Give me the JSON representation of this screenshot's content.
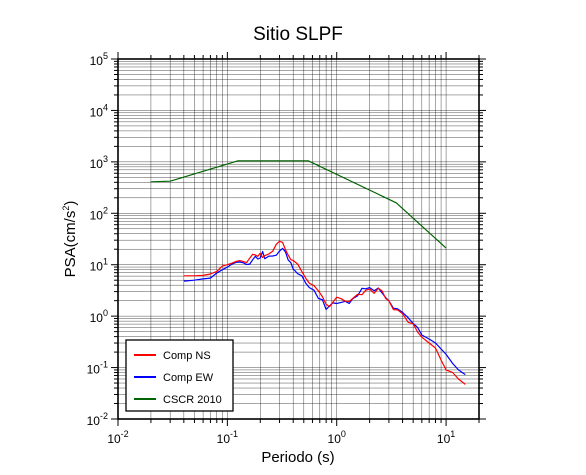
{
  "chart_data": {
    "type": "line",
    "title": "Sitio SLPF",
    "xlabel": "Periodo (s)",
    "ylabel_base": "PSA(cm/s",
    "ylabel_sup": "2",
    "ylabel_tail": ")",
    "xscale": "log",
    "yscale": "log",
    "xlim": [
      0.01,
      20
    ],
    "ylim": [
      0.01,
      100000
    ],
    "grid": true,
    "legend_position": "bottom-left",
    "x_ticks": [
      {
        "base": "10",
        "exp": "-2"
      },
      {
        "base": "10",
        "exp": "-1"
      },
      {
        "base": "10",
        "exp": "0"
      },
      {
        "base": "10",
        "exp": "1"
      }
    ],
    "y_ticks": [
      {
        "base": "10",
        "exp": "-2"
      },
      {
        "base": "10",
        "exp": "-1"
      },
      {
        "base": "10",
        "exp": "0"
      },
      {
        "base": "10",
        "exp": "1"
      },
      {
        "base": "10",
        "exp": "2"
      },
      {
        "base": "10",
        "exp": "3"
      },
      {
        "base": "10",
        "exp": "4"
      },
      {
        "base": "10",
        "exp": "5"
      }
    ],
    "series": [
      {
        "name": "Comp NS",
        "color": "#ff0000",
        "points": [
          [
            0.04,
            6.1
          ],
          [
            0.05,
            6.1
          ],
          [
            0.06,
            6.2
          ],
          [
            0.07,
            6.6
          ],
          [
            0.08,
            7.4
          ],
          [
            0.09,
            9.5
          ],
          [
            0.1,
            10.0
          ],
          [
            0.11,
            10.7
          ],
          [
            0.12,
            11.6
          ],
          [
            0.13,
            12.0
          ],
          [
            0.14,
            11.5
          ],
          [
            0.15,
            11.0
          ],
          [
            0.16,
            13.4
          ],
          [
            0.17,
            15.9
          ],
          [
            0.18,
            15.5
          ],
          [
            0.19,
            14.5
          ],
          [
            0.2,
            16.8
          ],
          [
            0.21,
            13.8
          ],
          [
            0.22,
            15.0
          ],
          [
            0.24,
            16.2
          ],
          [
            0.26,
            18.2
          ],
          [
            0.28,
            24.9
          ],
          [
            0.3,
            28.5
          ],
          [
            0.32,
            27.1
          ],
          [
            0.34,
            19.5
          ],
          [
            0.36,
            15.4
          ],
          [
            0.38,
            12.5
          ],
          [
            0.4,
            12.1
          ],
          [
            0.44,
            10.3
          ],
          [
            0.48,
            7.3
          ],
          [
            0.52,
            5.5
          ],
          [
            0.56,
            4.4
          ],
          [
            0.62,
            3.9
          ],
          [
            0.68,
            3.1
          ],
          [
            0.74,
            2.4
          ],
          [
            0.8,
            1.7
          ],
          [
            0.86,
            1.53
          ],
          [
            0.92,
            1.87
          ],
          [
            1.0,
            2.34
          ],
          [
            1.1,
            2.18
          ],
          [
            1.2,
            1.95
          ],
          [
            1.3,
            1.93
          ],
          [
            1.4,
            2.2
          ],
          [
            1.55,
            2.66
          ],
          [
            1.7,
            2.61
          ],
          [
            1.85,
            3.2
          ],
          [
            2.0,
            3.35
          ],
          [
            2.2,
            2.78
          ],
          [
            2.4,
            3.49
          ],
          [
            2.6,
            3.08
          ],
          [
            2.8,
            2.21
          ],
          [
            3.0,
            1.99
          ],
          [
            3.3,
            1.34
          ],
          [
            3.6,
            1.32
          ],
          [
            4.0,
            1.11
          ],
          [
            4.5,
            0.76
          ],
          [
            5.0,
            0.71
          ],
          [
            5.5,
            0.49
          ],
          [
            6.0,
            0.39
          ],
          [
            7.0,
            0.3
          ],
          [
            8.0,
            0.24
          ],
          [
            9.0,
            0.14
          ],
          [
            10.0,
            0.09
          ],
          [
            11.5,
            0.08
          ],
          [
            13.0,
            0.06
          ],
          [
            15.0,
            0.047
          ]
        ]
      },
      {
        "name": "Comp EW",
        "color": "#0000ff",
        "points": [
          [
            0.04,
            4.8
          ],
          [
            0.05,
            5.0
          ],
          [
            0.06,
            5.3
          ],
          [
            0.07,
            5.5
          ],
          [
            0.08,
            6.9
          ],
          [
            0.09,
            8.0
          ],
          [
            0.1,
            9.0
          ],
          [
            0.11,
            10.3
          ],
          [
            0.12,
            11.1
          ],
          [
            0.13,
            11.3
          ],
          [
            0.14,
            10.9
          ],
          [
            0.15,
            10.1
          ],
          [
            0.16,
            10.3
          ],
          [
            0.17,
            12.4
          ],
          [
            0.18,
            14.6
          ],
          [
            0.19,
            12.9
          ],
          [
            0.2,
            13.5
          ],
          [
            0.21,
            18.1
          ],
          [
            0.22,
            13.1
          ],
          [
            0.24,
            14.7
          ],
          [
            0.26,
            14.8
          ],
          [
            0.28,
            15.3
          ],
          [
            0.3,
            18.5
          ],
          [
            0.32,
            20.8
          ],
          [
            0.34,
            17.7
          ],
          [
            0.36,
            12.3
          ],
          [
            0.38,
            11.0
          ],
          [
            0.4,
            8.3
          ],
          [
            0.44,
            6.7
          ],
          [
            0.48,
            6.1
          ],
          [
            0.52,
            4.4
          ],
          [
            0.56,
            3.6
          ],
          [
            0.62,
            3.2
          ],
          [
            0.68,
            2.2
          ],
          [
            0.74,
            2.09
          ],
          [
            0.8,
            1.35
          ],
          [
            0.86,
            1.59
          ],
          [
            0.92,
            1.81
          ],
          [
            1.0,
            1.76
          ],
          [
            1.1,
            1.85
          ],
          [
            1.2,
            1.94
          ],
          [
            1.3,
            1.76
          ],
          [
            1.4,
            2.18
          ],
          [
            1.55,
            2.47
          ],
          [
            1.7,
            3.47
          ],
          [
            1.85,
            3.4
          ],
          [
            2.0,
            3.59
          ],
          [
            2.2,
            3.11
          ],
          [
            2.4,
            3.53
          ],
          [
            2.6,
            2.82
          ],
          [
            2.8,
            2.3
          ],
          [
            3.0,
            1.99
          ],
          [
            3.3,
            1.43
          ],
          [
            3.6,
            1.39
          ],
          [
            4.0,
            1.18
          ],
          [
            4.5,
            0.93
          ],
          [
            5.0,
            0.72
          ],
          [
            5.5,
            0.6
          ],
          [
            6.0,
            0.43
          ],
          [
            7.0,
            0.36
          ],
          [
            8.0,
            0.3
          ],
          [
            9.0,
            0.23
          ],
          [
            10.0,
            0.18
          ],
          [
            11.5,
            0.12
          ],
          [
            13.0,
            0.09
          ],
          [
            15.0,
            0.073
          ]
        ]
      },
      {
        "name": "CSCR 2010",
        "color": "#006400",
        "points": [
          [
            0.02,
            410
          ],
          [
            0.03,
            420
          ],
          [
            0.125,
            1050
          ],
          [
            0.55,
            1050
          ],
          [
            3.5,
            160
          ],
          [
            10.0,
            21
          ]
        ]
      }
    ]
  }
}
